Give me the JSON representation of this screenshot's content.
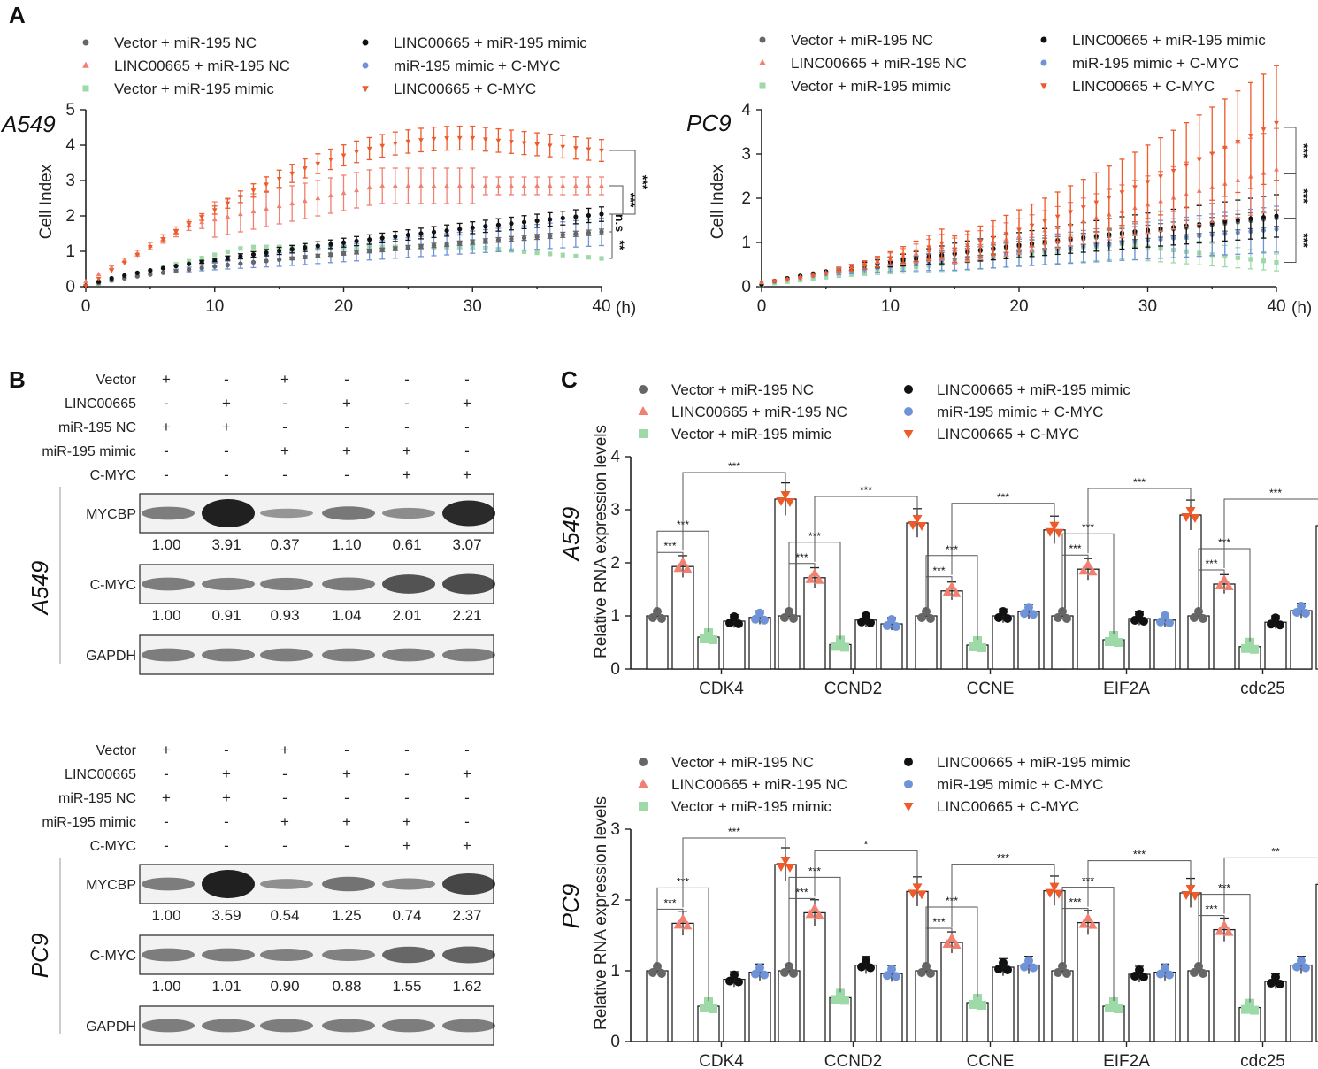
{
  "colors": {
    "black": "#111111",
    "grey": "#666666",
    "salmon": "#f08070",
    "green": "#9ed9a8",
    "blue": "#7093d8",
    "orange": "#ee5a2a"
  },
  "legend": {
    "entries": [
      {
        "label": "Vector + miR-195 NC",
        "color": "#666666",
        "shape": "circle"
      },
      {
        "label": "LINC00665 + miR-195 NC",
        "color": "#f08070",
        "shape": "triangle-up"
      },
      {
        "label": "Vector + miR-195 mimic",
        "color": "#9ed9a8",
        "shape": "square"
      },
      {
        "label": "LINC00665 + miR-195 mimic",
        "color": "#111111",
        "shape": "circle"
      },
      {
        "label": "miR-195 mimic + C-MYC",
        "color": "#7093d8",
        "shape": "circle"
      },
      {
        "label": "LINC00665 + C-MYC",
        "color": "#ee5a2a",
        "shape": "triangle-down"
      }
    ]
  },
  "panels": {
    "a": "A",
    "b": "B",
    "c": "C"
  },
  "cells": {
    "a549": "A549",
    "pc9": "PC9"
  },
  "units": {
    "hours": "(h)"
  },
  "wb": {
    "rows": [
      "Vector",
      "LINC00665",
      "miR-195 NC",
      "miR-195 mimic",
      "C-MYC"
    ],
    "signs": [
      [
        "+",
        "-",
        "+",
        "-",
        "-",
        "-"
      ],
      [
        "-",
        "+",
        "-",
        "+",
        "-",
        "+"
      ],
      [
        "+",
        "+",
        "-",
        "-",
        "-",
        "-"
      ],
      [
        "-",
        "-",
        "+",
        "+",
        "+",
        "-"
      ],
      [
        "-",
        "-",
        "-",
        "-",
        "+",
        "+"
      ]
    ],
    "bands": [
      "MYCBP",
      "C-MYC",
      "GAPDH"
    ],
    "a549": {
      "mycbp": [
        "1.00",
        "3.91",
        "0.37",
        "1.10",
        "0.61",
        "3.07"
      ],
      "cmyc": [
        "1.00",
        "0.91",
        "0.93",
        "1.04",
        "2.01",
        "2.21"
      ]
    },
    "pc9": {
      "mycbp": [
        "1.00",
        "3.59",
        "0.54",
        "1.25",
        "0.74",
        "2.37"
      ],
      "cmyc": [
        "1.00",
        "1.01",
        "0.90",
        "0.88",
        "1.55",
        "1.62"
      ]
    }
  },
  "chart_data": [
    {
      "type": "scatter",
      "title": "A549",
      "xlabel": "(h)",
      "ylabel": "Cell Index",
      "xlim": [
        0,
        40
      ],
      "ylim": [
        0,
        5
      ],
      "xticks": [
        0,
        10,
        20,
        30,
        40
      ],
      "yticks": [
        0,
        1,
        2,
        3,
        4,
        5
      ],
      "endpoints": {
        "Vector + miR-195 NC": 1.55,
        "LINC00665 + miR-195 NC": 2.85,
        "Vector + miR-195 mimic": 0.8,
        "LINC00665 + miR-195 mimic": 2.05,
        "miR-195 mimic + C-MYC": 1.55,
        "LINC00665 + C-MYC": 3.85
      },
      "significance": [
        "***",
        "***",
        "n.s",
        "**"
      ]
    },
    {
      "type": "scatter",
      "title": "PC9",
      "xlabel": "(h)",
      "ylabel": "Cell Index",
      "xlim": [
        0,
        40
      ],
      "ylim": [
        0,
        4
      ],
      "xticks": [
        0,
        10,
        20,
        30,
        40
      ],
      "yticks": [
        0,
        1,
        2,
        3,
        4
      ],
      "endpoints": {
        "Vector + miR-195 NC": 1.5,
        "LINC00665 + miR-195 NC": 2.55,
        "Vector + miR-195 mimic": 0.55,
        "LINC00665 + miR-195 mimic": 1.55,
        "miR-195 mimic + C-MYC": 1.25,
        "LINC00665 + C-MYC": 3.6
      },
      "significance": [
        "***",
        "***",
        "***"
      ]
    },
    {
      "type": "bar",
      "title": "A549",
      "ylabel": "Relative RNA expression levels",
      "categories": [
        "CDK4",
        "CCND2",
        "CCNE",
        "EIF2A",
        "cdc25"
      ],
      "ylim": [
        0,
        4
      ],
      "yticks": [
        0,
        1,
        2,
        3,
        4
      ],
      "series": [
        {
          "name": "Vector + miR-195 NC",
          "values": [
            1.0,
            1.0,
            1.0,
            1.0,
            1.0
          ]
        },
        {
          "name": "LINC00665 + miR-195 NC",
          "values": [
            1.93,
            1.72,
            1.47,
            1.88,
            1.6
          ]
        },
        {
          "name": "Vector + miR-195 mimic",
          "values": [
            0.6,
            0.46,
            0.45,
            0.55,
            0.42
          ]
        },
        {
          "name": "LINC00665 + miR-195 mimic",
          "values": [
            0.9,
            0.92,
            1.0,
            0.95,
            0.88
          ]
        },
        {
          "name": "miR-195 mimic + C-MYC",
          "values": [
            0.97,
            0.85,
            1.08,
            0.92,
            1.1
          ]
        },
        {
          "name": "LINC00665 + C-MYC",
          "values": [
            3.2,
            2.75,
            2.62,
            2.9,
            2.7
          ]
        }
      ],
      "significance": [
        [
          "***",
          "***",
          "***"
        ],
        [
          "***",
          "***",
          "***"
        ],
        [
          "***",
          "***",
          "***"
        ],
        [
          "***",
          "***",
          "***"
        ],
        [
          "***",
          "***",
          "***"
        ]
      ]
    },
    {
      "type": "bar",
      "title": "PC9",
      "ylabel": "Relative RNA expression levels",
      "categories": [
        "CDK4",
        "CCND2",
        "CCNE",
        "EIF2A",
        "cdc25"
      ],
      "ylim": [
        0,
        3
      ],
      "yticks": [
        0,
        1,
        2,
        3
      ],
      "series": [
        {
          "name": "Vector + miR-195 NC",
          "values": [
            1.0,
            1.0,
            1.0,
            1.0,
            1.0
          ]
        },
        {
          "name": "LINC00665 + miR-195 NC",
          "values": [
            1.67,
            1.82,
            1.4,
            1.68,
            1.58
          ]
        },
        {
          "name": "Vector + miR-195 mimic",
          "values": [
            0.5,
            0.62,
            0.55,
            0.5,
            0.48
          ]
        },
        {
          "name": "LINC00665 + miR-195 mimic",
          "values": [
            0.88,
            1.08,
            1.05,
            0.95,
            0.85
          ]
        },
        {
          "name": "miR-195 mimic + C-MYC",
          "values": [
            0.98,
            0.96,
            1.08,
            0.98,
            1.08
          ]
        },
        {
          "name": "LINC00665 + C-MYC",
          "values": [
            2.5,
            2.12,
            2.13,
            2.1,
            2.22
          ]
        }
      ],
      "significance": [
        [
          "***",
          "***",
          "***"
        ],
        [
          "***",
          "***",
          "*"
        ],
        [
          "***",
          "***",
          "***"
        ],
        [
          "***",
          "***",
          "***"
        ],
        [
          "***",
          "***",
          "**"
        ]
      ]
    }
  ]
}
